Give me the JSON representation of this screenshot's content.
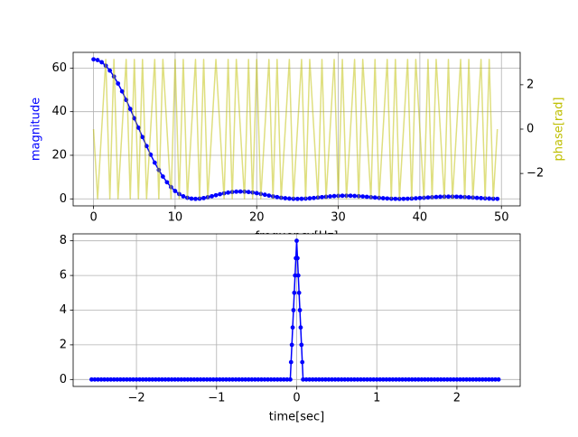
{
  "chart_data": [
    {
      "type": "line",
      "xlabel": "frequency[Hz]",
      "ylabel": "magnitude",
      "y2label": "phase[rad]",
      "ylabel_color": "#0000ff",
      "y2label_color": "#bfbf00",
      "grid": true,
      "xlim": [
        -2.5,
        52.3
      ],
      "xticks": [
        0,
        10,
        20,
        30,
        40,
        50
      ],
      "ylim": [
        -3.2,
        67.2
      ],
      "yticks": [
        0,
        20,
        40,
        60
      ],
      "y2lim": [
        -3.46,
        3.46
      ],
      "y2ticks": [
        {
          "value": -2,
          "label": "−2"
        },
        0,
        2
      ],
      "x": [
        0,
        0.5,
        1,
        1.5,
        2,
        2.5,
        3,
        3.5,
        4,
        4.5,
        5,
        5.5,
        6,
        6.5,
        7,
        7.5,
        8,
        8.5,
        9,
        9.5,
        10,
        10.5,
        11,
        11.5,
        12,
        12.5,
        13,
        13.5,
        14,
        14.5,
        15,
        15.5,
        16,
        16.5,
        17,
        17.5,
        18,
        18.5,
        19,
        19.5,
        20,
        20.5,
        21,
        21.5,
        22,
        22.5,
        23,
        23.5,
        24,
        24.5,
        25,
        25.5,
        26,
        26.5,
        27,
        27.5,
        28,
        28.5,
        29,
        29.5,
        30,
        30.5,
        31,
        31.5,
        32,
        32.5,
        33,
        33.5,
        34,
        34.5,
        35,
        35.5,
        36,
        36.5,
        37,
        37.5,
        38,
        38.5,
        39,
        39.5,
        40,
        40.5,
        41,
        41.5,
        42,
        42.5,
        43,
        43.5,
        44,
        44.5,
        45,
        45.5,
        46,
        46.5,
        47,
        47.5,
        48,
        48.5,
        49,
        49.5
      ],
      "series": [
        {
          "color": "#0000ff",
          "marker": true,
          "values": [
            64,
            63.67,
            62.68,
            61.07,
            58.86,
            56.12,
            52.91,
            49.3,
            45.38,
            41.24,
            36.96,
            32.64,
            28.37,
            24.22,
            20.28,
            16.6,
            13.24,
            10.24,
            7.63,
            5.42,
            3.62,
            2.21,
            1.18,
            0.5,
            0.12,
            0,
            0.1,
            0.37,
            0.75,
            1.2,
            1.68,
            2.14,
            2.56,
            2.9,
            3.16,
            3.31,
            3.36,
            3.3,
            3.15,
            2.92,
            2.62,
            2.27,
            1.9,
            1.52,
            1.15,
            0.82,
            0.53,
            0.3,
            0.13,
            0.03,
            0,
            0.03,
            0.12,
            0.25,
            0.41,
            0.6,
            0.79,
            0.97,
            1.14,
            1.28,
            1.38,
            1.44,
            1.46,
            1.43,
            1.35,
            1.24,
            1.11,
            0.94,
            0.77,
            0.6,
            0.44,
            0.29,
            0.17,
            0.07,
            0.02,
            0,
            0.02,
            0.07,
            0.15,
            0.26,
            0.38,
            0.51,
            0.64,
            0.77,
            0.87,
            0.96,
            1.01,
            1.04,
            1.03,
            0.99,
            0.93,
            0.84,
            0.72,
            0.6,
            0.47,
            0.35,
            0.23,
            0.14,
            0.06,
            0.02
          ]
        },
        {
          "color": "#bfbf00",
          "axis": "y2",
          "alpha": 0.5,
          "values": [
            0,
            -3.14,
            0,
            3.14,
            -3.14,
            3.14,
            -3.14,
            0,
            3.14,
            -3.14,
            3.14,
            -3.14,
            3.14,
            -3.14,
            0,
            3.14,
            -3.14,
            3.14,
            0,
            -3.14,
            3.14,
            -3.14,
            3.14,
            -3.14,
            0,
            3.14,
            -3.14,
            3.14,
            -3.14,
            0,
            3.14,
            0,
            -3.14,
            3.14,
            -3.14,
            3.14,
            0,
            -3.14,
            3.14,
            -3.14,
            3.14,
            -3.14,
            0,
            3.14,
            -3.14,
            3.14,
            -3.14,
            0,
            3.14,
            -3.14,
            0,
            3.14,
            -3.14,
            3.14,
            0,
            -3.14,
            3.14,
            -3.14,
            0,
            3.14,
            -3.14,
            3.14,
            -3.14,
            0,
            3.14,
            -3.14,
            3.14,
            0,
            -3.14,
            3.14,
            -3.14,
            0,
            3.14,
            -3.14,
            3.14,
            -3.14,
            0,
            3.14,
            -3.14,
            3.14,
            0,
            -3.14,
            3.14,
            -3.14,
            3.14,
            0,
            -3.14,
            3.14,
            -3.14,
            0,
            3.14,
            -3.14,
            3.14,
            -3.14,
            0,
            3.14,
            -3.14,
            3.14,
            -3.14,
            0
          ]
        }
      ]
    },
    {
      "type": "line",
      "xlabel": "time[sec]",
      "grid": true,
      "xlim": [
        -2.79,
        2.79
      ],
      "xticks": [
        {
          "value": -2,
          "label": "−2"
        },
        {
          "value": -1,
          "label": "−1"
        },
        0,
        1,
        2
      ],
      "ylim": [
        -0.4,
        8.4
      ],
      "yticks": [
        0,
        2,
        4,
        6,
        8
      ],
      "x": [
        -2.56,
        -2.52,
        -2.48,
        -2.44,
        -2.4,
        -2.36,
        -2.32,
        -2.28,
        -2.24,
        -2.2,
        -2.16,
        -2.12,
        -2.08,
        -2.04,
        -2,
        -1.96,
        -1.92,
        -1.88,
        -1.84,
        -1.8,
        -1.76,
        -1.72,
        -1.68,
        -1.64,
        -1.6,
        -1.56,
        -1.52,
        -1.48,
        -1.44,
        -1.4,
        -1.36,
        -1.32,
        -1.28,
        -1.24,
        -1.2,
        -1.16,
        -1.12,
        -1.08,
        -1.04,
        -1,
        -0.96,
        -0.92,
        -0.88,
        -0.84,
        -0.8,
        -0.76,
        -0.72,
        -0.68,
        -0.64,
        -0.6,
        -0.56,
        -0.52,
        -0.48,
        -0.44,
        -0.4,
        -0.36,
        -0.32,
        -0.28,
        -0.24,
        -0.2,
        -0.16,
        -0.12,
        -0.08,
        -0.07,
        -0.06,
        -0.05,
        -0.04,
        -0.03,
        -0.02,
        -0.01,
        0,
        0.01,
        0.02,
        0.03,
        0.04,
        0.05,
        0.06,
        0.07,
        0.08,
        0.12,
        0.16,
        0.2,
        0.24,
        0.28,
        0.32,
        0.36,
        0.4,
        0.44,
        0.48,
        0.52,
        0.56,
        0.6,
        0.64,
        0.68,
        0.72,
        0.76,
        0.8,
        0.84,
        0.88,
        0.92,
        0.96,
        1,
        1.04,
        1.08,
        1.12,
        1.16,
        1.2,
        1.24,
        1.28,
        1.32,
        1.36,
        1.4,
        1.44,
        1.48,
        1.52,
        1.56,
        1.6,
        1.64,
        1.68,
        1.72,
        1.76,
        1.8,
        1.84,
        1.88,
        1.92,
        1.96,
        2,
        2.04,
        2.08,
        2.12,
        2.16,
        2.2,
        2.24,
        2.28,
        2.32,
        2.36,
        2.4,
        2.44,
        2.48,
        2.52
      ],
      "series": [
        {
          "color": "#0000ff",
          "marker": true,
          "values": [
            0,
            0,
            0,
            0,
            0,
            0,
            0,
            0,
            0,
            0,
            0,
            0,
            0,
            0,
            0,
            0,
            0,
            0,
            0,
            0,
            0,
            0,
            0,
            0,
            0,
            0,
            0,
            0,
            0,
            0,
            0,
            0,
            0,
            0,
            0,
            0,
            0,
            0,
            0,
            0,
            0,
            0,
            0,
            0,
            0,
            0,
            0,
            0,
            0,
            0,
            0,
            0,
            0,
            0,
            0,
            0,
            0,
            0,
            0,
            0,
            0,
            0,
            0,
            1,
            2,
            3,
            4,
            5,
            6,
            7,
            8,
            7,
            6,
            5,
            4,
            3,
            2,
            1,
            0,
            0,
            0,
            0,
            0,
            0,
            0,
            0,
            0,
            0,
            0,
            0,
            0,
            0,
            0,
            0,
            0,
            0,
            0,
            0,
            0,
            0,
            0,
            0,
            0,
            0,
            0,
            0,
            0,
            0,
            0,
            0,
            0,
            0,
            0,
            0,
            0,
            0,
            0,
            0,
            0,
            0,
            0,
            0,
            0,
            0,
            0,
            0,
            0,
            0,
            0,
            0,
            0,
            0,
            0,
            0,
            0,
            0,
            0,
            0,
            0,
            0
          ]
        }
      ]
    }
  ]
}
